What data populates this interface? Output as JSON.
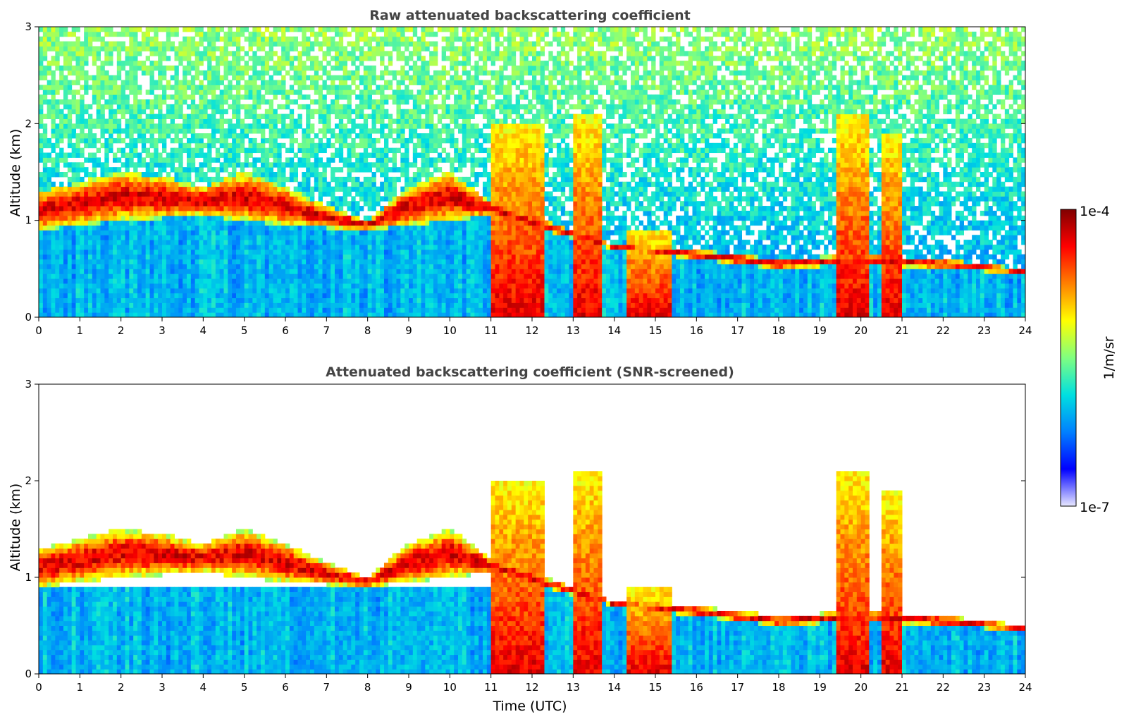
{
  "chart_data": [
    {
      "type": "heatmap",
      "title": "Raw attenuated backscattering coefficient",
      "xlabel": "",
      "ylabel": "Altitude (km)",
      "xlim": [
        0,
        24
      ],
      "ylim": [
        0,
        3
      ],
      "x_ticks": [
        "0",
        "1",
        "2",
        "3",
        "4",
        "5",
        "6",
        "7",
        "8",
        "9",
        "10",
        "11",
        "12",
        "13",
        "14",
        "15",
        "16",
        "17",
        "18",
        "19",
        "20",
        "21",
        "22",
        "23",
        "24"
      ],
      "y_ticks": [
        "0",
        "1",
        "2",
        "3"
      ],
      "screened": false,
      "features": {
        "boundary_layer_top_km": [
          [
            0,
            0.9
          ],
          [
            2,
            1.0
          ],
          [
            4,
            1.05
          ],
          [
            6,
            0.95
          ],
          [
            8,
            0.9
          ],
          [
            10,
            1.0
          ],
          [
            11,
            1.05
          ],
          [
            12.3,
            0.9
          ],
          [
            14,
            0.7
          ],
          [
            16,
            0.6
          ],
          [
            18,
            0.5
          ],
          [
            20,
            0.55
          ],
          [
            22,
            0.5
          ],
          [
            24,
            0.45
          ]
        ],
        "aerosol_layer_top_km": [
          [
            0,
            1.3
          ],
          [
            2,
            1.5
          ],
          [
            3,
            1.45
          ],
          [
            4,
            1.35
          ],
          [
            5,
            1.5
          ],
          [
            6,
            1.35
          ],
          [
            7,
            1.15
          ],
          [
            8,
            1.0
          ],
          [
            9,
            1.35
          ],
          [
            10,
            1.5
          ],
          [
            11,
            1.2
          ],
          [
            12.3,
            1.0
          ],
          [
            13,
            0.9
          ],
          [
            14,
            0.75
          ],
          [
            16,
            0.7
          ],
          [
            18,
            0.6
          ],
          [
            20,
            0.65
          ],
          [
            22,
            0.6
          ],
          [
            24,
            0.5
          ]
        ],
        "strong_columns": [
          {
            "x0": 11.0,
            "x1": 12.3,
            "top_km": 2.0
          },
          {
            "x0": 13.0,
            "x1": 13.7,
            "top_km": 2.1
          },
          {
            "x0": 14.3,
            "x1": 15.4,
            "top_km": 0.9
          },
          {
            "x0": 19.4,
            "x1": 20.2,
            "top_km": 2.1
          },
          {
            "x0": 20.5,
            "x1": 21.0,
            "top_km": 1.9
          }
        ]
      }
    },
    {
      "type": "heatmap",
      "title": "Attenuated backscattering coefficient (SNR-screened)",
      "xlabel": "Time (UTC)",
      "ylabel": "Altitude (km)",
      "xlim": [
        0,
        24
      ],
      "ylim": [
        0,
        3
      ],
      "x_ticks": [
        "0",
        "1",
        "2",
        "3",
        "4",
        "5",
        "6",
        "7",
        "8",
        "9",
        "10",
        "11",
        "12",
        "13",
        "14",
        "15",
        "16",
        "17",
        "18",
        "19",
        "20",
        "21",
        "22",
        "23",
        "24"
      ],
      "y_ticks": [
        "0",
        "1",
        "2",
        "3"
      ],
      "screened": true
    }
  ],
  "colorbar": {
    "label": "1/m/sr",
    "max_label": "1e-4",
    "min_label": "1e-7",
    "scale": "log",
    "colormap": [
      "#e8e8ff",
      "#0000ff",
      "#0080ff",
      "#00e0e0",
      "#80ff80",
      "#ffff00",
      "#ff8000",
      "#ff0000",
      "#800000"
    ]
  }
}
